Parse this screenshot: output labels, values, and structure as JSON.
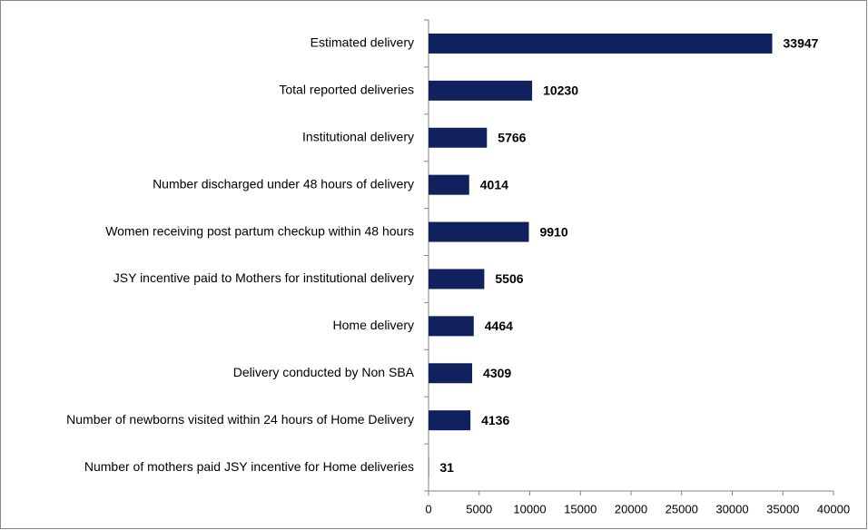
{
  "chart_data": {
    "type": "bar",
    "orientation": "horizontal",
    "categories": [
      "Estimated delivery",
      "Total reported deliveries",
      "Institutional delivery",
      "Number discharged under 48 hours of delivery",
      "Women receiving post partum checkup within 48 hours",
      "JSY incentive paid to Mothers for institutional delivery",
      "Home delivery",
      "Delivery conducted by Non SBA",
      "Number of newborns visited within 24 hours of Home Delivery",
      "Number of mothers paid JSY incentive for Home deliveries"
    ],
    "values": [
      33947,
      10230,
      5766,
      4014,
      9910,
      5506,
      4464,
      4309,
      4136,
      31
    ],
    "color": "#10215e",
    "xlim": [
      0,
      40000
    ],
    "xticks": [
      0,
      5000,
      10000,
      15000,
      20000,
      25000,
      30000,
      35000,
      40000
    ],
    "grid": false
  }
}
